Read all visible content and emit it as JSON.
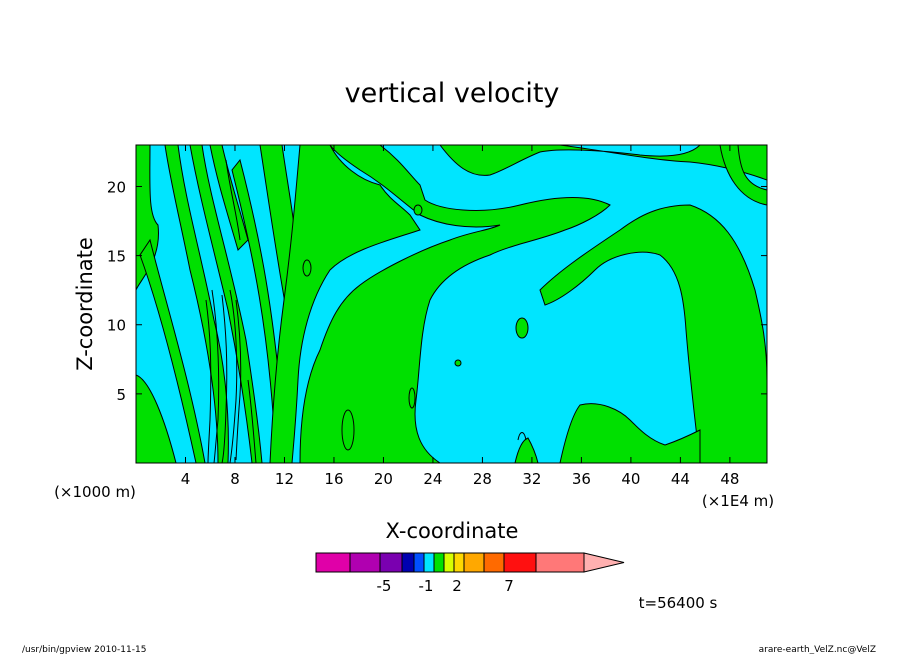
{
  "chart_data": {
    "type": "heatmap",
    "title": "vertical velocity",
    "xlabel": "X-coordinate",
    "ylabel": "Z-coordinate",
    "x_unit_left": "(×1000 m)",
    "x_unit_right": "(×1E4 m)",
    "x_ticks": [
      4,
      8,
      12,
      16,
      20,
      24,
      28,
      32,
      36,
      40,
      44,
      48
    ],
    "y_ticks": [
      5,
      10,
      15,
      20
    ],
    "xlim": [
      0,
      51
    ],
    "ylim": [
      0,
      23
    ],
    "time_label": "t=56400 s",
    "colorbar": {
      "tick_labels": [
        "-5",
        "-1",
        "2",
        "7"
      ],
      "colors": [
        "#e000a8",
        "#b000b0",
        "#7a00b0",
        "#0000b0",
        "#0050ff",
        "#00e5ff",
        "#00e000",
        "#d8ff00",
        "#ffd800",
        "#ffa800",
        "#ff6a00",
        "#ff1010",
        "#ff7878",
        "#ffb0b0"
      ]
    },
    "colors": {
      "background_fill": "#00e5ff",
      "contour_fill": "#00e000",
      "contour_line": "#000000"
    }
  },
  "footer": {
    "left": "/usr/bin/gpview   2010-11-15",
    "right": "arare-earth_VelZ.nc@VelZ"
  }
}
